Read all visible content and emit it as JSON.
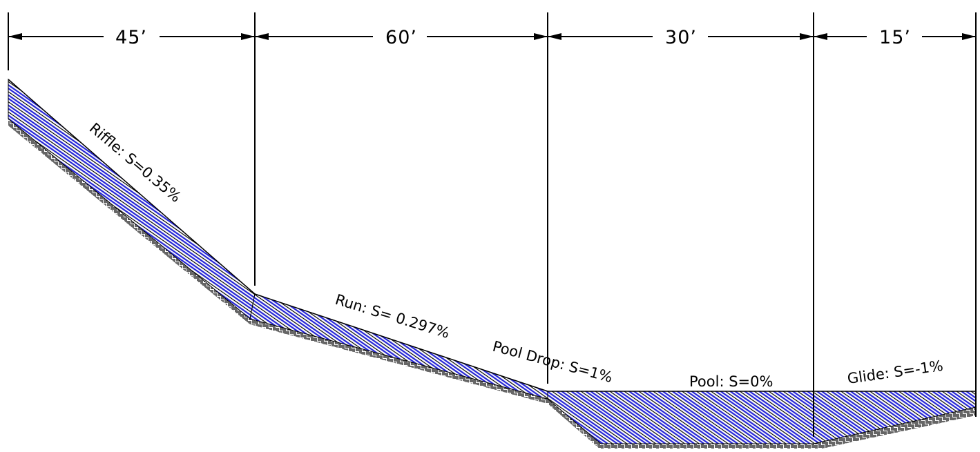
{
  "dimensions": {
    "riffle_length": "45’",
    "run_length": "60’",
    "pool_length": "30’",
    "glide_length": "15’"
  },
  "segments": {
    "riffle": "Riffle: S=0.35%",
    "run": "Run: S= 0.297%",
    "pool_drop": "Pool Drop: S=1%",
    "pool": "Pool: S=0%",
    "glide": "Glide: S=-1%"
  },
  "colors": {
    "water_hatch": "#2424d6",
    "line": "#000000",
    "background": "#ffffff"
  },
  "patterns": {
    "water": "diagonal-hatch",
    "bed": "basket-weave-hatch"
  }
}
